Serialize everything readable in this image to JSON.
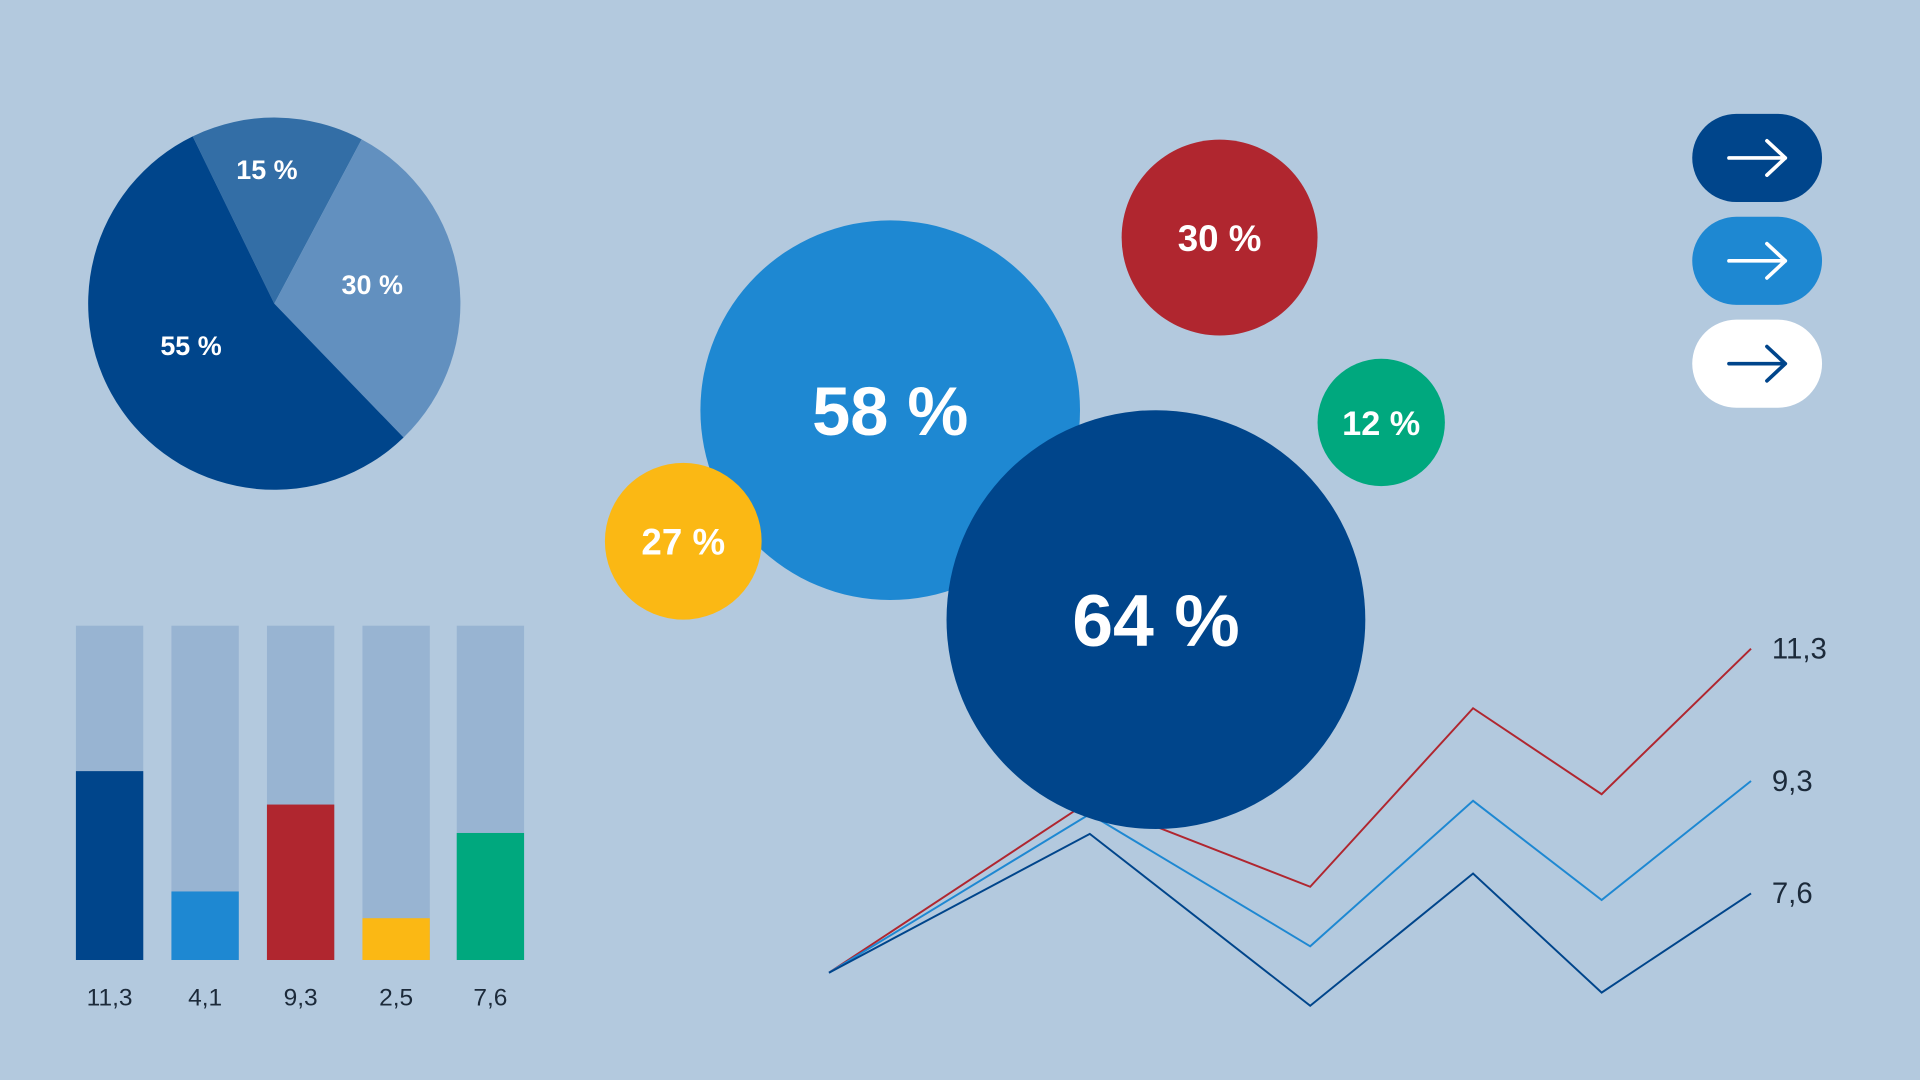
{
  "colors": {
    "background": "#b3c9de",
    "dark_blue": "#00458b",
    "mid_blue": "#336ea6",
    "light_blue_slice": "#6290bf",
    "bright_blue": "#1e88d2",
    "red": "#b0262f",
    "yellow": "#fbb814",
    "green": "#00a87e",
    "bar_track": "#98b4d2",
    "label_text": "#1c2a3a",
    "white": "#ffffff"
  },
  "chart_data": [
    {
      "type": "pie",
      "slices": [
        {
          "label": "15 %",
          "value": 15,
          "color": "#336ea6"
        },
        {
          "label": "30 %",
          "value": 30,
          "color": "#6290bf"
        },
        {
          "label": "55 %",
          "value": 55,
          "color": "#00458b"
        }
      ]
    },
    {
      "type": "bar",
      "categories": [
        "11,3",
        "4,1",
        "9,3",
        "2,5",
        "7,6"
      ],
      "values": [
        11.3,
        4.1,
        9.3,
        2.5,
        7.6
      ],
      "colors": [
        "#00458b",
        "#1e88d2",
        "#b0262f",
        "#fbb814",
        "#00a87e"
      ],
      "ylim": [
        0,
        20
      ],
      "grid": false
    },
    {
      "type": "bubble",
      "bubbles": [
        {
          "label": "58 %",
          "value": 58,
          "color": "#1e88d2"
        },
        {
          "label": "27 %",
          "value": 27,
          "color": "#fbb814"
        },
        {
          "label": "30 %",
          "value": 30,
          "color": "#b0262f"
        },
        {
          "label": "12 %",
          "value": 12,
          "color": "#00a87e"
        },
        {
          "label": "64 %",
          "value": 64,
          "color": "#00458b"
        }
      ]
    },
    {
      "type": "line",
      "x": [
        0,
        1,
        2,
        3,
        4,
        5
      ],
      "series": [
        {
          "end_label": "11,3",
          "color": "#b0262f",
          "values": [
            6.4,
            9.0,
            7.7,
            10.4,
            9.1,
            11.3
          ]
        },
        {
          "end_label": "9,3",
          "color": "#1e88d2",
          "values": [
            6.4,
            8.8,
            6.8,
            9.0,
            7.5,
            9.3
          ]
        },
        {
          "end_label": "7,6",
          "color": "#00458b",
          "values": [
            6.4,
            8.5,
            5.9,
            7.9,
            6.1,
            7.6
          ]
        }
      ],
      "grid": false
    }
  ],
  "buttons": [
    {
      "icon": "arrow-right-icon",
      "style": "dark"
    },
    {
      "icon": "arrow-right-icon",
      "style": "bright"
    },
    {
      "icon": "arrow-right-icon",
      "style": "white"
    }
  ]
}
